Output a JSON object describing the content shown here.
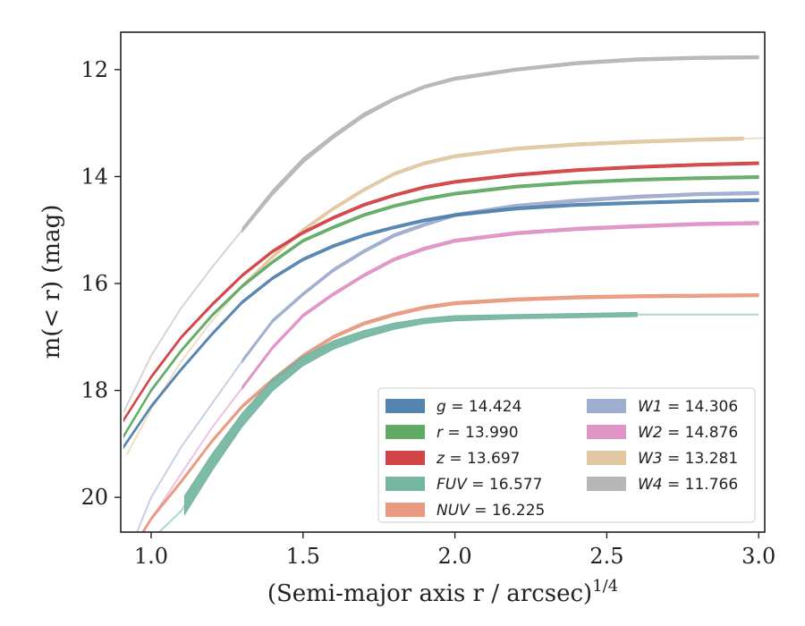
{
  "chart_data": {
    "type": "line",
    "xlabel": "(Semi-major axis r / arcsec)",
    "xlabel_exponent": "1/4",
    "ylabel": "m(< r) (mag)",
    "xlim": [
      0.9,
      3.02
    ],
    "ylim": [
      20.65,
      11.3
    ],
    "y_inverted": true,
    "grid": false,
    "legend_position": "lower-right",
    "legend_columns": 2,
    "x_ticks": [
      1.0,
      1.5,
      2.0,
      2.5,
      3.0
    ],
    "x_tick_labels": [
      "1.0",
      "1.5",
      "2.0",
      "2.5",
      "3.0"
    ],
    "y_ticks": [
      12,
      14,
      16,
      18,
      20
    ],
    "y_tick_labels": [
      "12",
      "14",
      "16",
      "18",
      "20"
    ],
    "series": [
      {
        "name": "g",
        "label": "g = 14.424",
        "color": "#4c7eab",
        "x": [
          0.91,
          1.0,
          1.1,
          1.2,
          1.3,
          1.4,
          1.5,
          1.6,
          1.7,
          1.8,
          1.9,
          2.0,
          2.2,
          2.4,
          2.6,
          2.8,
          3.0
        ],
        "y": [
          19.05,
          18.3,
          17.6,
          16.95,
          16.35,
          15.9,
          15.55,
          15.3,
          15.1,
          14.95,
          14.82,
          14.72,
          14.6,
          14.53,
          14.49,
          14.46,
          14.44
        ],
        "uncertainty": [
          0.02,
          0.02,
          0.02,
          0.02,
          0.02,
          0.02,
          0.02,
          0.02,
          0.02,
          0.02,
          0.02,
          0.02,
          0.02,
          0.02,
          0.02,
          0.02,
          0.02
        ]
      },
      {
        "name": "r",
        "label": "r = 13.990",
        "color": "#5aa75e",
        "x": [
          0.91,
          1.0,
          1.1,
          1.2,
          1.3,
          1.4,
          1.5,
          1.6,
          1.7,
          1.8,
          1.9,
          2.0,
          2.2,
          2.4,
          2.6,
          2.8,
          3.0
        ],
        "y": [
          18.85,
          18.0,
          17.25,
          16.6,
          16.05,
          15.6,
          15.2,
          14.95,
          14.72,
          14.55,
          14.42,
          14.32,
          14.19,
          14.11,
          14.06,
          14.03,
          14.01
        ],
        "uncertainty": [
          0.02,
          0.02,
          0.02,
          0.02,
          0.02,
          0.02,
          0.02,
          0.02,
          0.02,
          0.02,
          0.02,
          0.02,
          0.02,
          0.02,
          0.02,
          0.02,
          0.02
        ]
      },
      {
        "name": "z",
        "label": "z = 13.697",
        "color": "#d03b3d",
        "x": [
          0.91,
          1.0,
          1.1,
          1.2,
          1.3,
          1.4,
          1.5,
          1.6,
          1.7,
          1.8,
          1.9,
          2.0,
          2.2,
          2.4,
          2.6,
          2.8,
          3.0
        ],
        "y": [
          18.55,
          17.75,
          17.0,
          16.4,
          15.85,
          15.4,
          15.05,
          14.77,
          14.53,
          14.35,
          14.2,
          14.1,
          13.97,
          13.88,
          13.82,
          13.78,
          13.75
        ],
        "uncertainty": [
          0.02,
          0.02,
          0.02,
          0.02,
          0.02,
          0.02,
          0.02,
          0.02,
          0.02,
          0.02,
          0.02,
          0.02,
          0.02,
          0.02,
          0.02,
          0.02,
          0.02
        ]
      },
      {
        "name": "FUV",
        "label": "FUV = 16.577",
        "color": "#6fb39f",
        "x": [
          0.98,
          1.1,
          1.11,
          1.2,
          1.3,
          1.4,
          1.5,
          1.6,
          1.7,
          1.8,
          1.9,
          2.0,
          2.2,
          2.4,
          2.6,
          2.8,
          3.0
        ],
        "y": [
          20.9,
          20.25,
          20.15,
          19.35,
          18.55,
          17.9,
          17.45,
          17.15,
          16.95,
          16.8,
          16.7,
          16.65,
          16.62,
          16.6,
          16.58,
          16.58,
          16.58
        ],
        "uncertainty": [
          0.18,
          0.18,
          0.18,
          0.16,
          0.13,
          0.11,
          0.09,
          0.08,
          0.07,
          0.06,
          0.05,
          0.05,
          0.04,
          0.04,
          0.04,
          0.01,
          0.01
        ],
        "faded_before": 1.11,
        "faded_after": 2.6
      },
      {
        "name": "NUV",
        "label": "NUV = 16.225",
        "color": "#e8957a",
        "x": [
          0.94,
          1.0,
          1.1,
          1.2,
          1.3,
          1.4,
          1.5,
          1.6,
          1.7,
          1.8,
          1.9,
          2.0,
          2.2,
          2.4,
          2.6,
          2.8,
          3.0
        ],
        "y": [
          20.95,
          20.4,
          19.7,
          18.95,
          18.3,
          17.8,
          17.35,
          17.0,
          16.75,
          16.58,
          16.45,
          16.37,
          16.3,
          16.26,
          16.24,
          16.23,
          16.22
        ],
        "uncertainty": [
          0.03,
          0.03,
          0.03,
          0.03,
          0.03,
          0.03,
          0.03,
          0.03,
          0.03,
          0.03,
          0.03,
          0.03,
          0.03,
          0.03,
          0.03,
          0.03,
          0.03
        ]
      },
      {
        "name": "W1",
        "label": "W1 = 14.306",
        "color": "#9aa9cc",
        "x": [
          0.95,
          1.0,
          1.1,
          1.2,
          1.3,
          1.4,
          1.5,
          1.6,
          1.7,
          1.8,
          1.9,
          2.0,
          2.2,
          2.4,
          2.6,
          2.8,
          3.0
        ],
        "y": [
          20.7,
          20.0,
          19.05,
          18.25,
          17.45,
          16.7,
          16.2,
          15.75,
          15.4,
          15.1,
          14.9,
          14.72,
          14.55,
          14.45,
          14.38,
          14.33,
          14.31
        ],
        "uncertainty": [
          0.03,
          0.03,
          0.03,
          0.03,
          0.03,
          0.03,
          0.03,
          0.03,
          0.03,
          0.03,
          0.03,
          0.03,
          0.03,
          0.03,
          0.03,
          0.03,
          0.03
        ],
        "faded_before": 1.3
      },
      {
        "name": "W2",
        "label": "W2 = 14.876",
        "color": "#dd8fc2",
        "x": [
          0.97,
          1.0,
          1.1,
          1.2,
          1.3,
          1.4,
          1.5,
          1.6,
          1.7,
          1.8,
          1.9,
          2.0,
          2.2,
          2.4,
          2.6,
          2.8,
          3.0
        ],
        "y": [
          20.7,
          20.4,
          19.55,
          18.7,
          17.95,
          17.2,
          16.6,
          16.2,
          15.85,
          15.55,
          15.35,
          15.2,
          15.06,
          14.98,
          14.93,
          14.89,
          14.87
        ],
        "uncertainty": [
          0.03,
          0.03,
          0.03,
          0.03,
          0.03,
          0.03,
          0.03,
          0.03,
          0.03,
          0.03,
          0.03,
          0.03,
          0.03,
          0.03,
          0.03,
          0.03,
          0.03
        ],
        "faded_before": 1.3
      },
      {
        "name": "W3",
        "label": "W3 = 13.281",
        "color": "#dfc59d",
        "x": [
          0.92,
          1.0,
          1.1,
          1.2,
          1.3,
          1.4,
          1.5,
          1.6,
          1.7,
          1.8,
          1.9,
          2.0,
          2.2,
          2.4,
          2.6,
          2.8,
          2.95,
          3.02
        ],
        "y": [
          19.2,
          18.35,
          17.45,
          16.7,
          16.05,
          15.5,
          15.0,
          14.6,
          14.25,
          13.95,
          13.75,
          13.62,
          13.48,
          13.4,
          13.35,
          13.31,
          13.29,
          13.28
        ],
        "uncertainty": [
          0.03,
          0.03,
          0.03,
          0.03,
          0.03,
          0.03,
          0.03,
          0.03,
          0.03,
          0.03,
          0.03,
          0.03,
          0.03,
          0.03,
          0.03,
          0.03,
          0.03,
          0.03
        ],
        "faded_before": 1.3,
        "faded_after": 2.95
      },
      {
        "name": "W4",
        "label": "W4 = 11.766",
        "color": "#b3b3b3",
        "x": [
          0.91,
          1.0,
          1.1,
          1.2,
          1.3,
          1.4,
          1.5,
          1.6,
          1.7,
          1.8,
          1.9,
          2.0,
          2.2,
          2.4,
          2.6,
          2.8,
          3.0
        ],
        "y": [
          18.4,
          17.35,
          16.45,
          15.7,
          15.0,
          14.3,
          13.7,
          13.25,
          12.85,
          12.55,
          12.32,
          12.17,
          12.0,
          11.88,
          11.81,
          11.78,
          11.77
        ],
        "uncertainty": [
          0.03,
          0.03,
          0.03,
          0.03,
          0.04,
          0.05,
          0.05,
          0.04,
          0.04,
          0.03,
          0.03,
          0.03,
          0.03,
          0.03,
          0.03,
          0.03,
          0.03
        ],
        "faded_before": 1.3
      }
    ],
    "legend_order": [
      "g",
      "r",
      "z",
      "FUV",
      "NUV",
      "W1",
      "W2",
      "W3",
      "W4"
    ]
  }
}
